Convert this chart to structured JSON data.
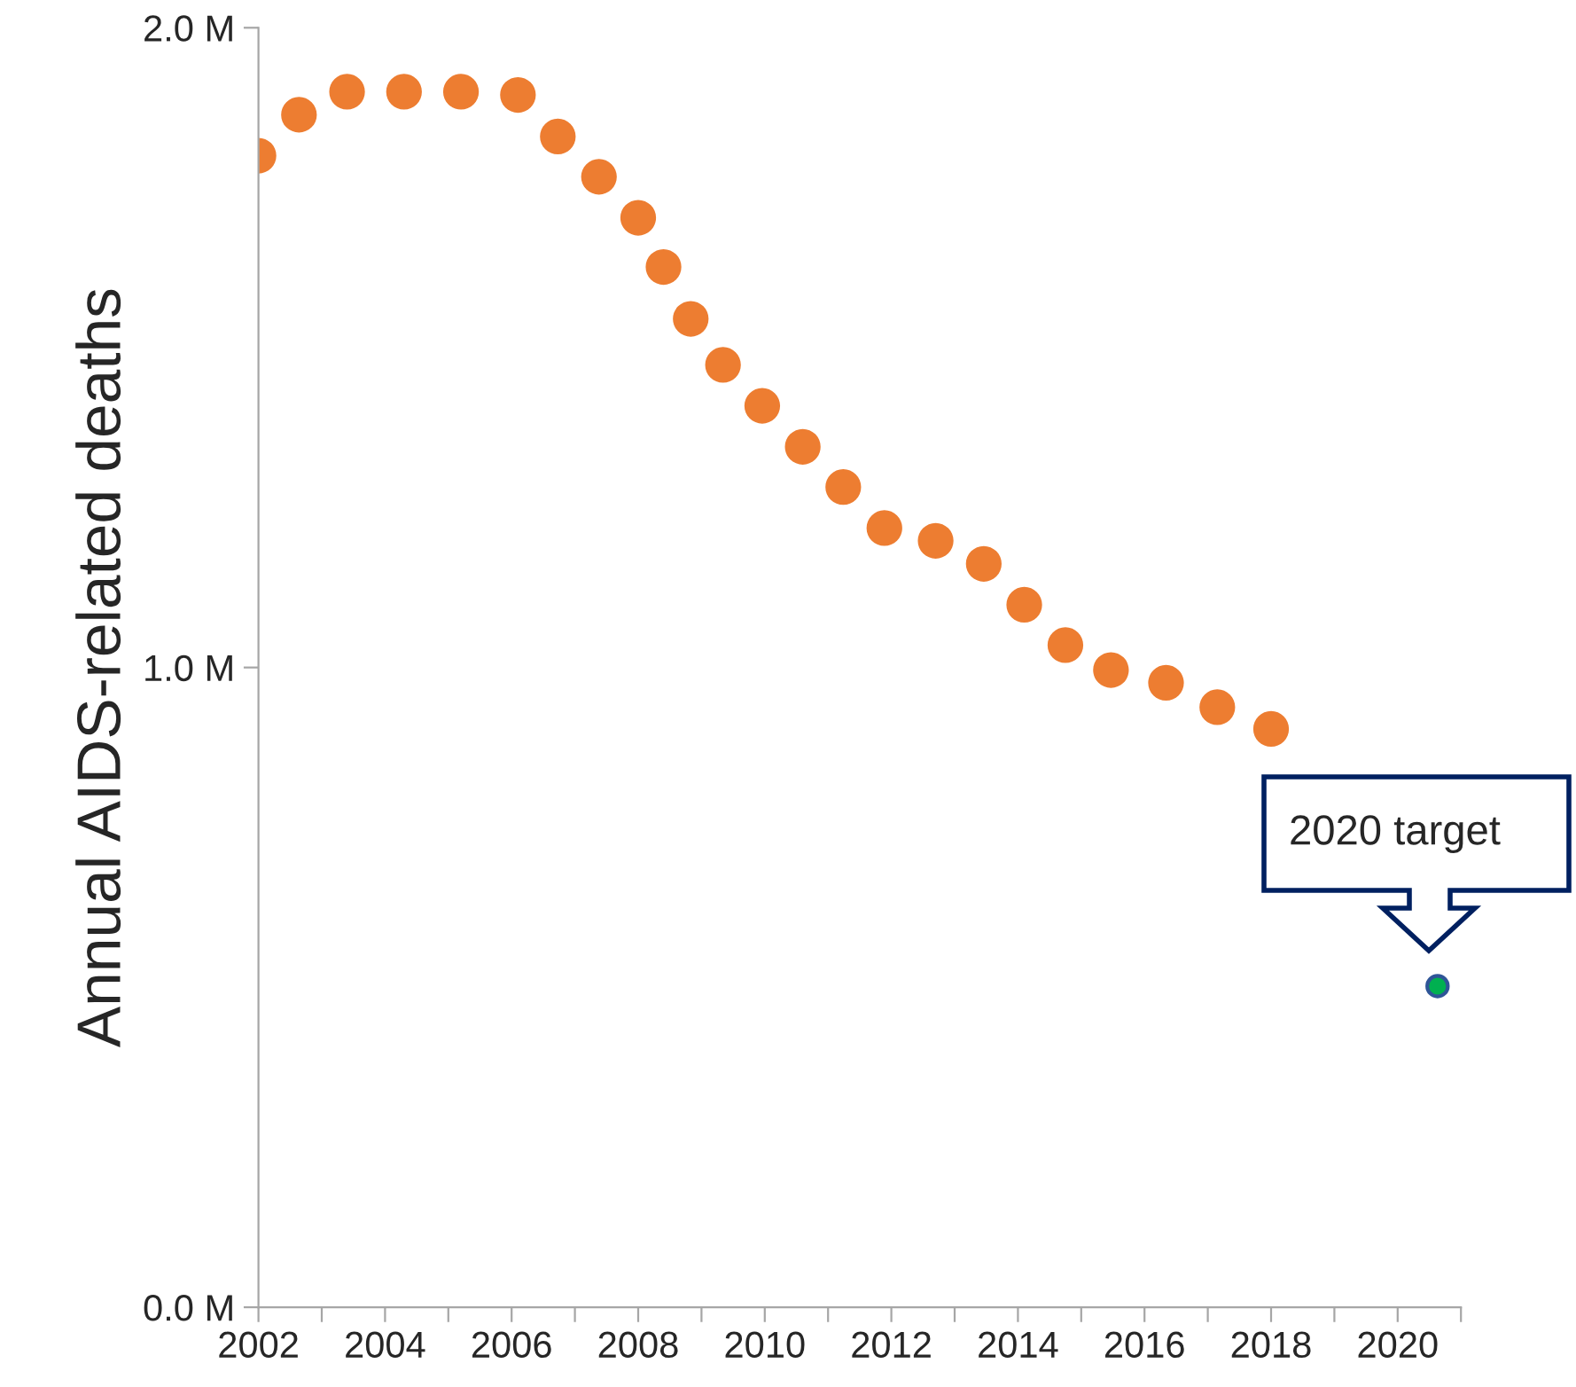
{
  "chart_data": {
    "type": "scatter",
    "ylabel": "Annual AIDS-related deaths",
    "series": [
      {
        "color": "#ed7d31",
        "x": [
          2002.0,
          2002.64,
          2003.4,
          2004.3,
          2005.2,
          2006.1,
          2006.73,
          2007.38,
          2008.0,
          2008.4,
          2008.83,
          2009.34,
          2009.96,
          2010.6,
          2011.24,
          2011.89,
          2012.7,
          2013.46,
          2014.1,
          2014.75,
          2015.47,
          2016.34,
          2017.15,
          2018.0
        ],
        "values": [
          1.8,
          1.864,
          1.9,
          1.9,
          1.9,
          1.895,
          1.83,
          1.767,
          1.703,
          1.626,
          1.545,
          1.473,
          1.409,
          1.345,
          1.282,
          1.218,
          1.198,
          1.162,
          1.098,
          1.035,
          0.996,
          0.976,
          0.938,
          0.904
        ]
      },
      {
        "color": "#00b050",
        "x": [
          2020.63
        ],
        "values": [
          0.502
        ]
      }
    ],
    "annotations": [
      "2020 target"
    ],
    "xlim": [
      2002,
      2021
    ],
    "xticks": [
      2002,
      {
        "value": 2003,
        "label": null
      },
      2004,
      {
        "value": 2005,
        "label": null
      },
      2006,
      {
        "value": 2007,
        "label": null
      },
      2008,
      {
        "value": 2009,
        "label": null
      },
      2010,
      {
        "value": 2011,
        "label": null
      },
      2012,
      {
        "value": 2013,
        "label": null
      },
      2014,
      {
        "value": 2015,
        "label": null
      },
      2016,
      {
        "value": 2017,
        "label": null
      },
      2018,
      {
        "value": 2019,
        "label": null
      },
      2020,
      {
        "value": 2021,
        "label": null
      }
    ],
    "ylim": [
      0,
      2
    ],
    "yticks": [
      {
        "value": 0,
        "label": "0.0 M"
      },
      {
        "value": 1,
        "label": "1.0 M"
      },
      {
        "value": 2,
        "label": "2.0 M"
      }
    ],
    "grid": false,
    "legend": false,
    "marker": "circle"
  }
}
